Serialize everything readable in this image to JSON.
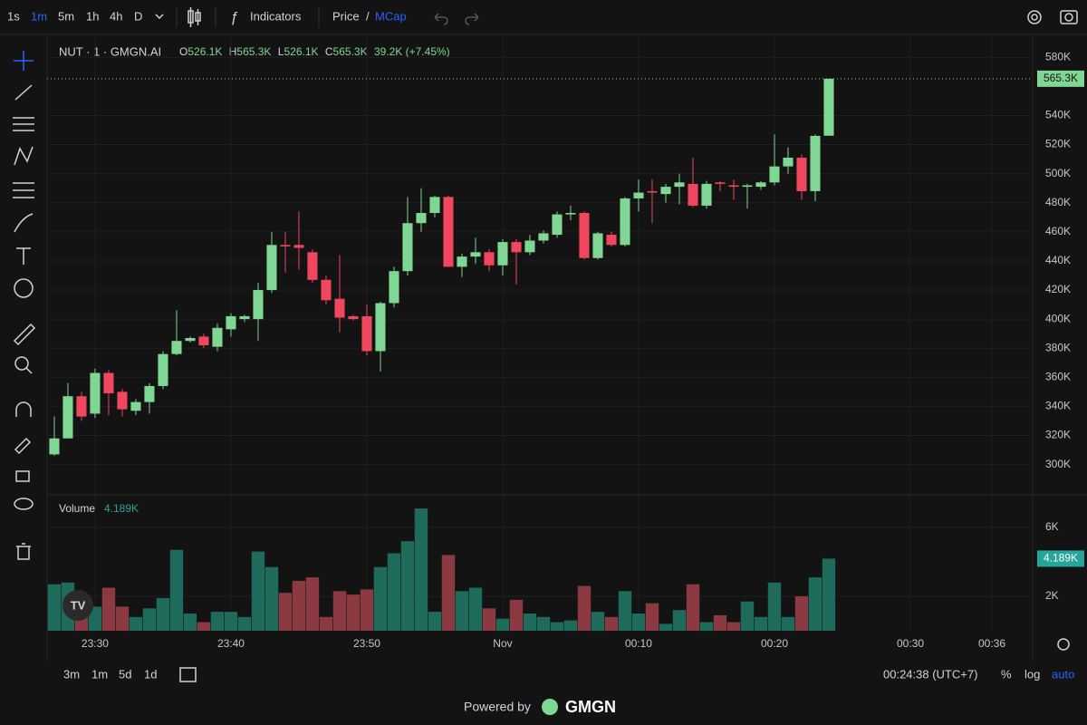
{
  "toolbar": {
    "intervals": [
      "1s",
      "1m",
      "5m",
      "1h",
      "4h",
      "D"
    ],
    "indicators": "Indicators",
    "price": "Price",
    "slash": "/",
    "mcap": "MCap"
  },
  "header": {
    "symbol": "NUT · 1 · GMGN.AI",
    "ohlc": [
      {
        "label": "O",
        "value": "526.1K"
      },
      {
        "label": "H",
        "value": "565.3K"
      },
      {
        "label": "L",
        "value": "526.1K"
      },
      {
        "label": "C",
        "value": "565.3K"
      }
    ],
    "change": "39.2K (+7.45%)"
  },
  "footer_bar": {
    "ranges": [
      "3m",
      "1m",
      "5d",
      "1d"
    ],
    "clock": "00:24:38 (UTC+7)",
    "percent": "%",
    "log": "log",
    "auto": "auto"
  },
  "powered": {
    "text": "Powered by",
    "brand": "GMGN"
  },
  "chart_data": [
    {
      "type": "candlestick",
      "up_color": "#7fd793",
      "down_color": "#f0475f",
      "open": [
        307,
        318,
        347,
        335,
        363,
        350,
        337,
        343,
        354,
        376,
        385,
        388,
        381,
        393,
        400,
        400,
        420,
        451,
        451,
        446,
        427,
        414,
        402,
        402,
        378,
        411,
        433,
        466,
        473,
        484,
        436,
        443,
        446,
        437,
        453,
        446,
        454,
        458,
        472,
        473,
        442,
        458,
        451,
        483,
        488,
        486,
        491,
        493,
        478,
        494,
        492,
        491,
        491,
        494,
        505,
        511,
        488,
        526.1
      ],
      "high": [
        333,
        356,
        350,
        366,
        365,
        352,
        345,
        356,
        378,
        406,
        388,
        390,
        397,
        404,
        403,
        425,
        460,
        460,
        474,
        448,
        430,
        444,
        403,
        410,
        412,
        436,
        484,
        490,
        485,
        485,
        445,
        456,
        448,
        455,
        455,
        458,
        461,
        474,
        478,
        474,
        460,
        460,
        484,
        496,
        496,
        493,
        500,
        511,
        495,
        495,
        496,
        493,
        495,
        527,
        518,
        513,
        527,
        565.3
      ],
      "low": [
        306,
        318,
        330,
        332,
        334,
        333,
        334,
        335,
        352,
        375,
        384,
        380,
        378,
        388,
        398,
        385,
        418,
        432,
        434,
        425,
        410,
        391,
        399,
        375,
        364,
        408,
        430,
        460,
        470,
        436,
        429,
        438,
        433,
        430,
        424,
        444,
        452,
        456,
        468,
        441,
        441,
        450,
        450,
        474,
        466,
        480,
        479,
        477,
        476,
        488,
        482,
        476,
        489,
        492,
        500,
        482,
        481,
        526.1
      ],
      "close": [
        318,
        347,
        333,
        363,
        349,
        338,
        343,
        354,
        376,
        385,
        387,
        382,
        394,
        402,
        402,
        420,
        451,
        450,
        449,
        427,
        413,
        401,
        400,
        378,
        411,
        433,
        466,
        473,
        484,
        436,
        443,
        446,
        437,
        453,
        446,
        454,
        459,
        472,
        473,
        442,
        459,
        451,
        483,
        487,
        487,
        491,
        494,
        478,
        493,
        493,
        491,
        492,
        494,
        505,
        511,
        488,
        526,
        565.3
      ],
      "ylim": [
        279.2,
        594.5
      ],
      "yticks": [
        {
          "value": 300,
          "label": "300K"
        },
        {
          "value": 320,
          "label": "320K"
        },
        {
          "value": 340,
          "label": "340K"
        },
        {
          "value": 360,
          "label": "360K"
        },
        {
          "value": 380,
          "label": "380K"
        },
        {
          "value": 400,
          "label": "400K"
        },
        {
          "value": 420,
          "label": "420K"
        },
        {
          "value": 440,
          "label": "440K"
        },
        {
          "value": 460,
          "label": "460K"
        },
        {
          "value": 480,
          "label": "480K"
        },
        {
          "value": 500,
          "label": "500K"
        },
        {
          "value": 520,
          "label": "520K"
        },
        {
          "value": 540,
          "label": "540K"
        },
        {
          "value": 580,
          "label": "580K"
        }
      ],
      "xlim": [
        -0.53,
        72
      ],
      "xticks": [
        {
          "value": 3,
          "label": "23:30"
        },
        {
          "value": 13,
          "label": "23:40"
        },
        {
          "value": 23,
          "label": "23:50"
        },
        {
          "value": 33,
          "label": "Nov"
        },
        {
          "value": 43,
          "label": "00:10"
        },
        {
          "value": 53,
          "label": "00:20"
        },
        {
          "value": 63,
          "label": "00:30"
        },
        {
          "value": 69,
          "label": "00:36"
        }
      ],
      "last_price": {
        "value": 565.3,
        "label": "565.3K"
      },
      "grid": true
    },
    {
      "type": "bar",
      "title": "Volume",
      "legend_value": "4.189K",
      "up_color": "#1f6b5b",
      "down_color": "#8b3a42",
      "values": [
        2.7,
        2.8,
        2.1,
        1.4,
        2.5,
        1.4,
        0.8,
        1.3,
        1.9,
        4.7,
        1.0,
        0.5,
        1.1,
        1.1,
        0.8,
        4.6,
        3.7,
        2.2,
        2.9,
        3.1,
        0.8,
        2.3,
        2.1,
        2.4,
        3.7,
        4.5,
        5.2,
        7.1,
        1.1,
        4.4,
        2.3,
        2.5,
        1.3,
        0.7,
        1.8,
        1.0,
        0.8,
        0.5,
        0.6,
        2.6,
        1.1,
        0.8,
        2.3,
        1.0,
        1.6,
        0.4,
        1.2,
        2.7,
        0.5,
        0.9,
        0.5,
        1.7,
        0.8,
        2.8,
        0.8,
        2.0,
        3.1,
        4.189
      ],
      "ylim": [
        0,
        7.79
      ],
      "yticks": [
        {
          "value": 2,
          "label": "2K"
        },
        {
          "value": 6,
          "label": "6K"
        }
      ],
      "last_value": {
        "value": 4.189,
        "label": "4.189K"
      },
      "grid": true
    }
  ]
}
